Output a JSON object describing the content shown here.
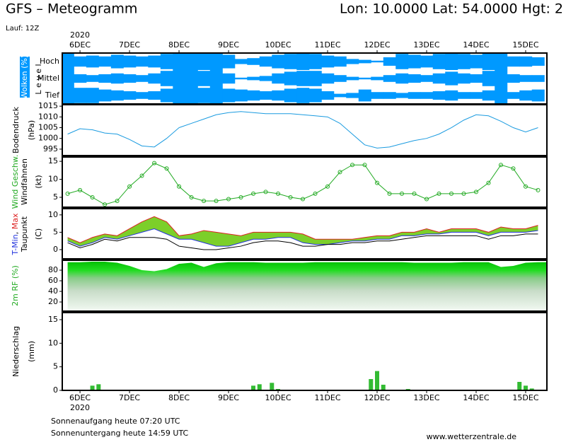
{
  "header": {
    "title": "GFS – Meteogramm",
    "location": "Lon: 10.0000 Lat: 54.0000 Hgt: 2",
    "run": "Lauf: 12Z",
    "year": "2020"
  },
  "time_axis": {
    "xlim": [
      -8.6,
      226.3
    ],
    "xticks": [
      {
        "value": 0,
        "label": "6DEC"
      },
      {
        "value": 24,
        "label": "7DEC"
      },
      {
        "value": 48,
        "label": "8DEC"
      },
      {
        "value": 72,
        "label": "9DEC"
      },
      {
        "value": 96,
        "label": "10DEC"
      },
      {
        "value": 120,
        "label": "11DEC"
      },
      {
        "value": 144,
        "label": "12DEC"
      },
      {
        "value": 168,
        "label": "13DEC"
      },
      {
        "value": 192,
        "label": "14DEC"
      },
      {
        "value": 216,
        "label": "15DEC"
      }
    ],
    "x": [
      -6,
      0,
      6,
      12,
      18,
      24,
      30,
      36,
      42,
      48,
      54,
      60,
      66,
      72,
      78,
      84,
      90,
      96,
      102,
      108,
      114,
      120,
      126,
      132,
      138,
      144,
      150,
      156,
      162,
      168,
      174,
      180,
      186,
      192,
      198,
      204,
      210,
      216,
      222
    ]
  },
  "chart_data": [
    {
      "type": "cloud",
      "ylabel": "Wolken (%)",
      "level_label": "L e v e l",
      "color": "#0099ff",
      "series": [
        {
          "name": "Hoch",
          "values": [
            100,
            60,
            70,
            60,
            80,
            70,
            60,
            70,
            90,
            100,
            100,
            100,
            100,
            80,
            30,
            40,
            60,
            80,
            90,
            100,
            90,
            70,
            60,
            30,
            20,
            10,
            50,
            90,
            80,
            70,
            90,
            100,
            90,
            80,
            100,
            100,
            60,
            60,
            50
          ]
        },
        {
          "name": "Mittel",
          "values": [
            100,
            50,
            40,
            50,
            60,
            50,
            40,
            60,
            90,
            100,
            100,
            90,
            100,
            60,
            10,
            20,
            30,
            60,
            80,
            90,
            90,
            60,
            40,
            20,
            10,
            20,
            40,
            60,
            50,
            40,
            60,
            80,
            60,
            50,
            90,
            100,
            50,
            40,
            40
          ]
        },
        {
          "name": "Tief",
          "values": [
            100,
            90,
            90,
            70,
            60,
            50,
            40,
            50,
            80,
            100,
            100,
            90,
            100,
            80,
            70,
            60,
            50,
            60,
            80,
            90,
            80,
            50,
            20,
            30,
            70,
            40,
            40,
            30,
            40,
            40,
            50,
            60,
            40,
            40,
            60,
            100,
            40,
            60,
            70
          ]
        }
      ]
    },
    {
      "type": "line",
      "ylabel": "Bodendruck",
      "unit": "(hPa)",
      "ylim": [
        992,
        1015.7
      ],
      "yticks": [
        995,
        1000,
        1005,
        1010,
        1015
      ],
      "series": [
        {
          "color": "#1a9be0",
          "values": [
            1002,
            1004.5,
            1004,
            1002.5,
            1002,
            999.5,
            996.5,
            996,
            1000,
            1005,
            1007,
            1009,
            1011,
            1012,
            1012.5,
            1012,
            1011.5,
            1011.5,
            1011.5,
            1011,
            1010.5,
            1010,
            1007,
            1002,
            997,
            995.5,
            996,
            997.5,
            999,
            1000,
            1002,
            1005,
            1008.5,
            1011,
            1010.5,
            1008,
            1005,
            1003,
            1005
          ]
        }
      ]
    },
    {
      "type": "line",
      "ylabel": "Windfahnen",
      "unit": "(kt)",
      "ylim": [
        2.25,
        16.2
      ],
      "yticks": [
        5,
        10,
        15
      ],
      "markers": true,
      "series": [
        {
          "name": "Wind Geschw.",
          "color": "#22aa22",
          "values": [
            6,
            7,
            5,
            3,
            4,
            8,
            11,
            14.5,
            13,
            8,
            5,
            4,
            4,
            4.5,
            5,
            6,
            6.5,
            6,
            5,
            4.5,
            6,
            8,
            12,
            14,
            14,
            9,
            6,
            6,
            6,
            4.5,
            6,
            6,
            6,
            6.5,
            9,
            14,
            13,
            8,
            7
          ]
        }
      ]
    },
    {
      "type": "range",
      "ylabel": "Taupunkt",
      "unit": "(C)",
      "label_separator": ", ",
      "ylim": [
        -2.65,
        11.8
      ],
      "yticks": [
        0,
        5,
        10
      ],
      "fill": "#7ccf2a",
      "series": [
        {
          "name": "T-Min",
          "color": "#2233dd",
          "values": [
            2.5,
            1,
            2,
            3.5,
            3,
            4,
            5,
            6,
            4.5,
            3,
            3,
            2,
            1,
            1,
            2,
            3,
            3,
            3.5,
            3.5,
            2,
            1.5,
            1.5,
            2,
            2.5,
            2.5,
            3,
            3,
            4,
            4,
            4.5,
            4.5,
            5,
            5,
            5,
            4,
            5,
            5,
            5,
            5.5
          ]
        },
        {
          "name": "Max",
          "color": "#dd2222",
          "values": [
            3.5,
            2,
            3.5,
            4.5,
            4,
            6,
            8,
            9.5,
            8,
            4,
            4.5,
            5.5,
            5,
            4.5,
            4,
            5,
            5,
            5,
            5,
            4.5,
            3,
            3,
            3,
            3,
            3.5,
            4,
            4,
            5,
            5,
            6,
            5,
            6,
            6,
            6,
            5,
            6.5,
            6,
            6,
            7
          ]
        },
        {
          "name": "Taupunkt",
          "color": "#000000",
          "values": [
            2,
            0.5,
            1.5,
            3,
            2.5,
            3.5,
            3.5,
            3.5,
            3,
            1,
            0.5,
            0,
            0,
            0.5,
            1,
            2,
            2.5,
            2.5,
            2,
            1,
            1,
            1.5,
            1.5,
            2,
            2,
            2.5,
            2.5,
            3,
            3.5,
            4,
            4,
            4,
            4,
            4,
            3,
            4,
            4,
            4.5,
            4.5
          ]
        }
      ]
    },
    {
      "type": "area",
      "ylabel": "2m RF (%)",
      "ylim": [
        2.7,
        98.7
      ],
      "yticks": [
        20,
        40,
        60,
        80
      ],
      "color": "#00bb00",
      "values": [
        95,
        95,
        96,
        96,
        94,
        88,
        80,
        78,
        82,
        92,
        94,
        86,
        93,
        95,
        95,
        95,
        94,
        94,
        94,
        94,
        95,
        95,
        95,
        95,
        95,
        95,
        95,
        95,
        94,
        94,
        94,
        94,
        95,
        95,
        95,
        86,
        88,
        94,
        95
      ]
    },
    {
      "type": "bar",
      "ylabel": "Niederschlag",
      "unit": "(mm)",
      "ylim": [
        0,
        16.5
      ],
      "yticks": [
        0,
        5,
        10,
        15
      ],
      "color": "#33bb33",
      "x": [
        6,
        9,
        84,
        87,
        93,
        96,
        141,
        144,
        147,
        159,
        213,
        216,
        219
      ],
      "values": [
        1,
        1.3,
        1,
        1.3,
        1.6,
        0.3,
        2.4,
        4.1,
        1.2,
        0.3,
        1.8,
        1,
        0.4
      ]
    }
  ],
  "footer": {
    "sunrise": "Sonnenaufgang heute 07:20 UTC",
    "sunset": "Sonnenuntergang heute 14:59 UTC",
    "source": "www.wetterzentrale.de"
  }
}
